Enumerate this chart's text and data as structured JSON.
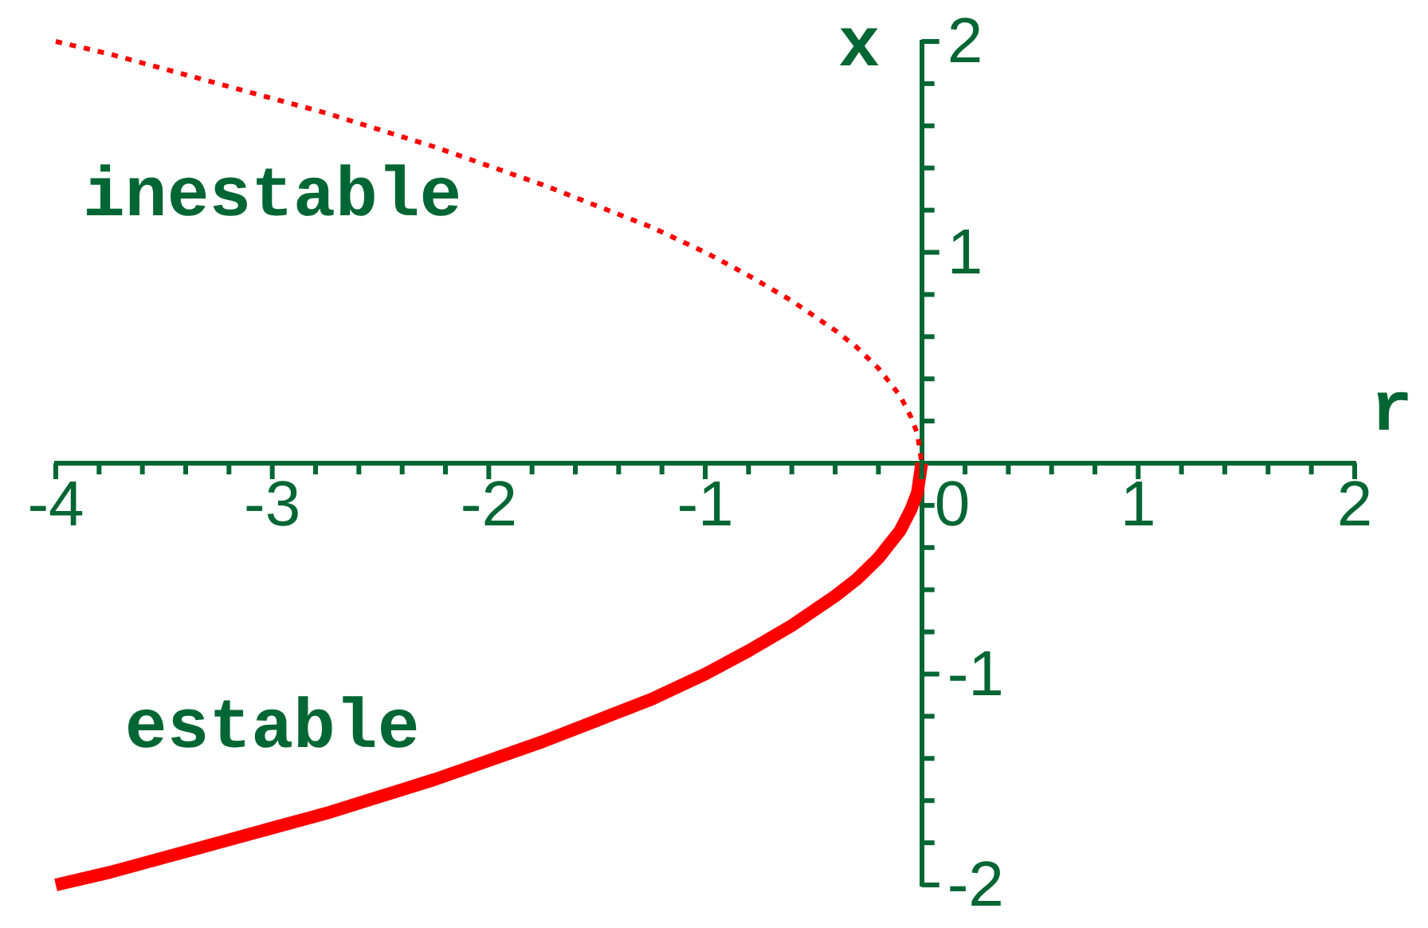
{
  "chart_data": {
    "type": "line",
    "xlabel": "r",
    "ylabel": "x",
    "xlim": [
      -4,
      2
    ],
    "ylim": [
      -2,
      2
    ],
    "xticks": [
      -4,
      {
        "value": -3.8,
        "label": null
      },
      {
        "value": -3.6,
        "label": null
      },
      {
        "value": -3.4,
        "label": null
      },
      {
        "value": -3.2,
        "label": null
      },
      -3,
      {
        "value": -2.8,
        "label": null
      },
      {
        "value": -2.6,
        "label": null
      },
      {
        "value": -2.4,
        "label": null
      },
      {
        "value": -2.2,
        "label": null
      },
      -2,
      {
        "value": -1.8,
        "label": null
      },
      {
        "value": -1.6,
        "label": null
      },
      {
        "value": -1.4,
        "label": null
      },
      {
        "value": -1.2,
        "label": null
      },
      -1,
      {
        "value": -0.8,
        "label": null
      },
      {
        "value": -0.6,
        "label": null
      },
      {
        "value": -0.4,
        "label": null
      },
      {
        "value": -0.2,
        "label": null
      },
      0,
      {
        "value": 0.2,
        "label": null
      },
      {
        "value": 0.4,
        "label": null
      },
      {
        "value": 0.6,
        "label": null
      },
      {
        "value": 0.8,
        "label": null
      },
      1,
      {
        "value": 1.2,
        "label": null
      },
      {
        "value": 1.4,
        "label": null
      },
      {
        "value": 1.6,
        "label": null
      },
      {
        "value": 1.8,
        "label": null
      },
      2
    ],
    "yticks": [
      -2,
      {
        "value": -1.8,
        "label": null
      },
      {
        "value": -1.6,
        "label": null
      },
      {
        "value": -1.4,
        "label": null
      },
      {
        "value": -1.2,
        "label": null
      },
      -1,
      {
        "value": -0.8,
        "label": null
      },
      {
        "value": -0.6,
        "label": null
      },
      {
        "value": -0.4,
        "label": null
      },
      {
        "value": -0.2,
        "label": null
      },
      {
        "value": 0.2,
        "label": null
      },
      {
        "value": 0.4,
        "label": null
      },
      {
        "value": 0.6,
        "label": null
      },
      {
        "value": 0.8,
        "label": null
      },
      1,
      {
        "value": 1.2,
        "label": null
      },
      {
        "value": 1.4,
        "label": null
      },
      {
        "value": 1.6,
        "label": null
      },
      {
        "value": 1.8,
        "label": null
      },
      2
    ],
    "grid": false,
    "legend": false,
    "marker": "none",
    "series": [
      {
        "name": "inestable",
        "color": "#ff0000",
        "line_style": "dashed",
        "x": [
          -4,
          -3.75,
          -3.5,
          -3.25,
          -3,
          -2.75,
          -2.5,
          -2.25,
          -2,
          -1.75,
          -1.5,
          -1.25,
          -1,
          -0.8,
          -0.6,
          -0.4,
          -0.3,
          -0.2,
          -0.1,
          -0.05,
          -0.02,
          0
        ],
        "values": [
          2,
          1.94,
          1.87,
          1.8,
          1.73,
          1.66,
          1.58,
          1.5,
          1.41,
          1.32,
          1.22,
          1.12,
          1,
          0.89,
          0.77,
          0.63,
          0.55,
          0.45,
          0.32,
          0.22,
          0.14,
          0
        ]
      },
      {
        "name": "estable",
        "color": "#ff0000",
        "line_style": "solid",
        "x": [
          -4,
          -3.75,
          -3.5,
          -3.25,
          -3,
          -2.75,
          -2.5,
          -2.25,
          -2,
          -1.75,
          -1.5,
          -1.25,
          -1,
          -0.8,
          -0.6,
          -0.4,
          -0.3,
          -0.2,
          -0.1,
          -0.05,
          -0.02,
          0
        ],
        "values": [
          -2,
          -1.94,
          -1.87,
          -1.8,
          -1.73,
          -1.66,
          -1.58,
          -1.5,
          -1.41,
          -1.32,
          -1.22,
          -1.12,
          -1,
          -0.89,
          -0.77,
          -0.63,
          -0.55,
          -0.45,
          -0.32,
          -0.22,
          -0.14,
          0
        ]
      }
    ]
  }
}
